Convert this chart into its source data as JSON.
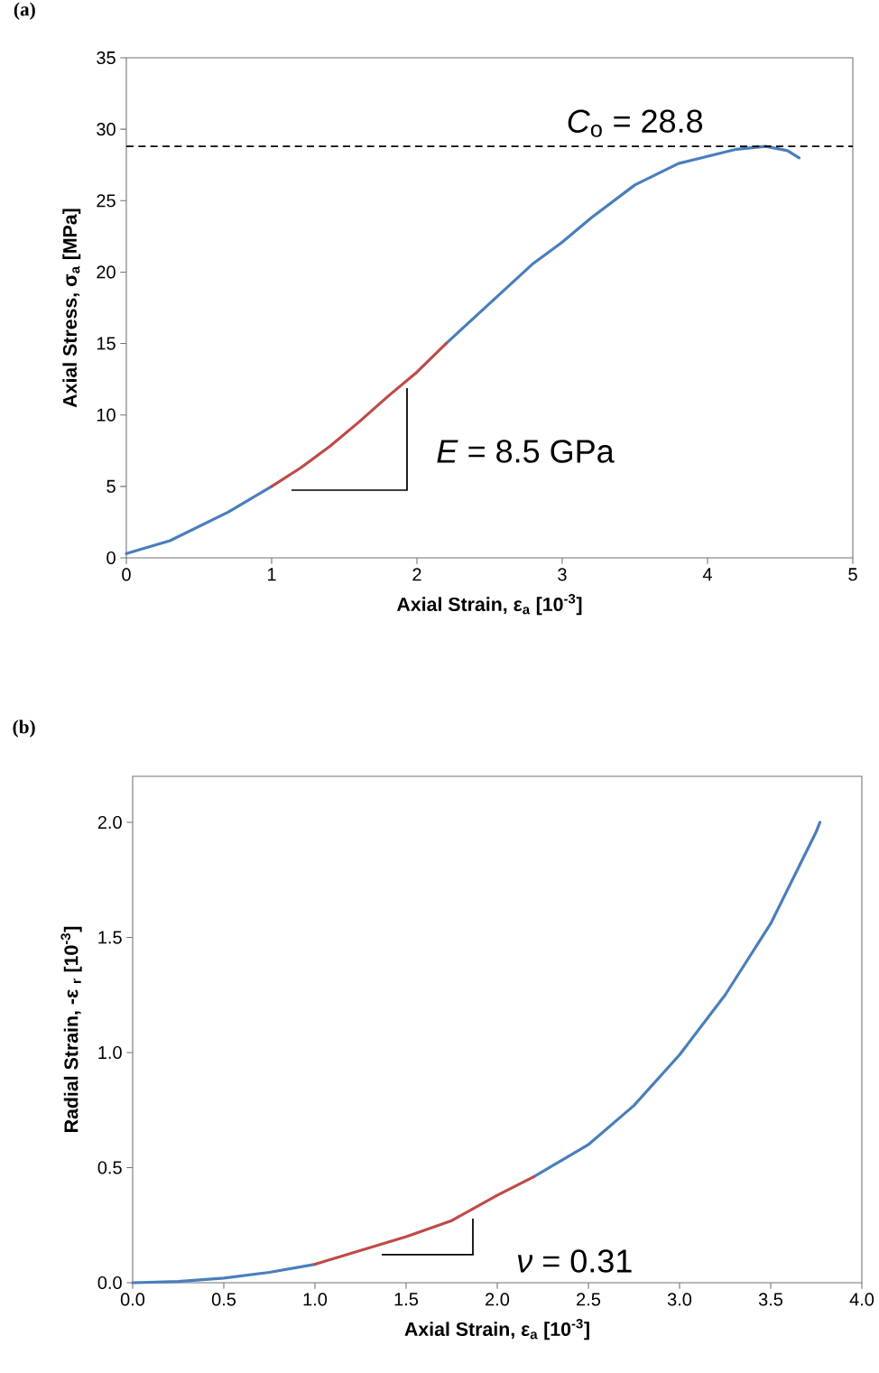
{
  "chart_data": [
    {
      "type": "line",
      "title": "(a)",
      "xlabel": "Axial Strain, ε$_{a}$ [10$^{-3}$]",
      "ylabel": "Axial Stress, σ$_{a}$ [MPa]",
      "xlim": [
        0,
        5
      ],
      "ylim": [
        0,
        35
      ],
      "xticks": [
        0,
        1,
        2,
        3,
        4,
        5
      ],
      "yticks": [
        0,
        5,
        10,
        15,
        20,
        25,
        30,
        35
      ],
      "line_style": "solid",
      "series": [
        {
          "color": "#4a7ebb",
          "x": [
            0,
            0.1,
            0.3,
            0.5,
            0.7,
            0.85,
            1,
            1.2,
            1.4,
            1.6,
            1.8,
            2,
            2.2,
            2.5,
            2.8,
            3,
            3.2,
            3.5,
            3.8,
            4,
            4.2,
            4.4,
            4.55,
            4.63
          ],
          "values": [
            0.3,
            0.6,
            1.2,
            2.2,
            3.2,
            4.1,
            5,
            null,
            null,
            null,
            null,
            null,
            15,
            17.8,
            20.6,
            22.1,
            23.8,
            26.1,
            27.6,
            28.1,
            28.6,
            28.8,
            28.5,
            28.0
          ]
        },
        {
          "color": "#be4b48",
          "x": [
            1,
            1.2,
            1.4,
            1.6,
            1.8,
            2,
            2.2
          ],
          "values": [
            5,
            6.3,
            7.8,
            9.5,
            11.3,
            13,
            15
          ]
        }
      ],
      "ref_lines": [
        {
          "axis": "y",
          "value": 28.8,
          "label": "*C*$_{o}$ = 28.8",
          "line_style": "dashed",
          "color": "#000000"
        }
      ],
      "annotations": [
        "*E* = 8.5 GPa"
      ]
    },
    {
      "type": "line",
      "title": "(b)",
      "xlabel": "Axial Strain, ε$_{a}$ [10$^{-3}$]",
      "ylabel": "Radial Strain, -ε $_{r}$ [10$^{-3}$]",
      "xlim": [
        0,
        4
      ],
      "ylim": [
        0,
        2.2
      ],
      "line_style": "solid",
      "xticks": [
        {
          "value": 0,
          "label": "0.0"
        },
        {
          "value": 0.5,
          "label": "0.5"
        },
        {
          "value": 1,
          "label": "1.0"
        },
        {
          "value": 1.5,
          "label": "1.5"
        },
        {
          "value": 2,
          "label": "2.0"
        },
        {
          "value": 2.5,
          "label": "2.5"
        },
        {
          "value": 3,
          "label": "3.0"
        },
        {
          "value": 3.5,
          "label": "3.5"
        },
        {
          "value": 4,
          "label": "4.0"
        }
      ],
      "yticks": [
        {
          "value": 0,
          "label": "0.0"
        },
        {
          "value": 0.5,
          "label": "0.5"
        },
        {
          "value": 1,
          "label": "1.0"
        },
        {
          "value": 1.5,
          "label": "1.5"
        },
        {
          "value": 2,
          "label": "2.0"
        }
      ],
      "series": [
        {
          "color": "#4a7ebb",
          "x": [
            0,
            0.25,
            0.5,
            0.75,
            1,
            1.25,
            1.5,
            1.75,
            2,
            2.2,
            2.5,
            2.75,
            3,
            3.25,
            3.5,
            3.75,
            3.77
          ],
          "values": [
            0,
            0.005,
            0.02,
            0.045,
            0.08,
            null,
            null,
            null,
            null,
            0.46,
            0.6,
            0.77,
            0.99,
            1.25,
            1.56,
            1.96,
            2.0
          ]
        },
        {
          "color": "#be4b48",
          "x": [
            1,
            1.25,
            1.5,
            1.75,
            2,
            2.2
          ],
          "values": [
            0.08,
            0.14,
            0.2,
            0.27,
            0.38,
            0.46
          ]
        }
      ],
      "annotations": [
        "*ν* = 0.31"
      ]
    }
  ]
}
